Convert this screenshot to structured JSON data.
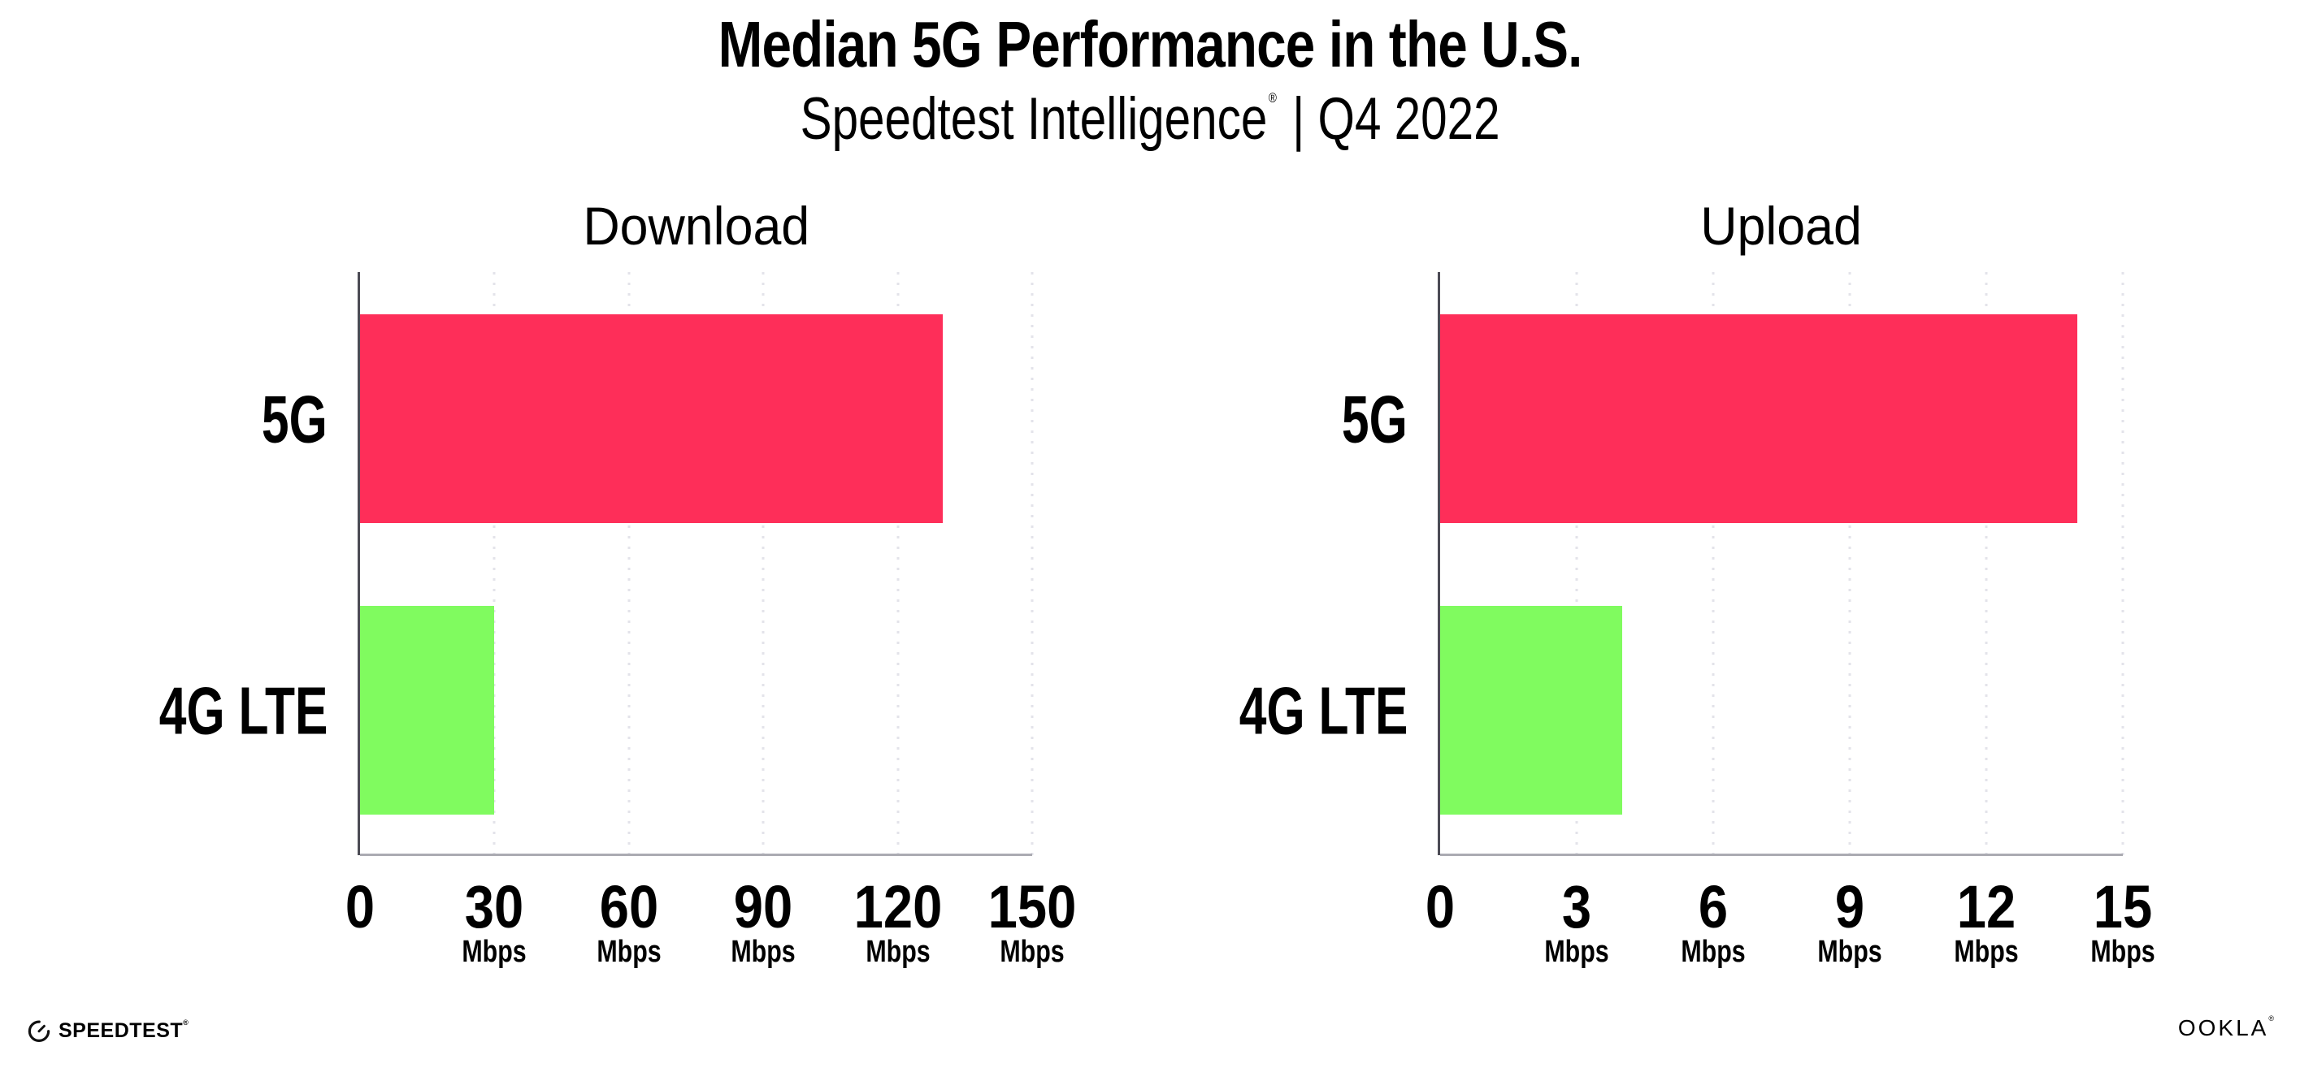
{
  "header": {
    "title": "Median 5G Performance in the U.S.",
    "subtitle_brand": "Speedtest Intelligence",
    "subtitle_reg": "®",
    "subtitle_rest": "| Q4 2022"
  },
  "colors": {
    "bar_5g": "#FE2E59",
    "bar_4g": "#80FB5F",
    "axis": "#4C4B55",
    "baseline": "#ABABB2",
    "grid": "#E3E3EA",
    "text": "#000000"
  },
  "footer": {
    "speedtest_label": "SPEEDTEST",
    "speedtest_mark": "®",
    "speedtest_icon": "gauge-icon",
    "ookla_label": "OOKLA",
    "ookla_mark": "®"
  },
  "chart_data": [
    {
      "type": "bar",
      "orientation": "horizontal",
      "title": "Download",
      "categories": [
        "5G",
        "4G LTE"
      ],
      "values": [
        130,
        30
      ],
      "unit": "Mbps",
      "xlim": [
        0,
        150
      ],
      "ticks": [
        0,
        30,
        60,
        90,
        120,
        150
      ],
      "tick_unit_label": "Mbps",
      "grid": "dotted-vertical",
      "legend": "none"
    },
    {
      "type": "bar",
      "orientation": "horizontal",
      "title": "Upload",
      "categories": [
        "5G",
        "4G LTE"
      ],
      "values": [
        14,
        4
      ],
      "unit": "Mbps",
      "xlim": [
        0,
        15
      ],
      "ticks": [
        0,
        3,
        6,
        9,
        12,
        15
      ],
      "tick_unit_label": "Mbps",
      "grid": "dotted-vertical",
      "legend": "none"
    }
  ]
}
